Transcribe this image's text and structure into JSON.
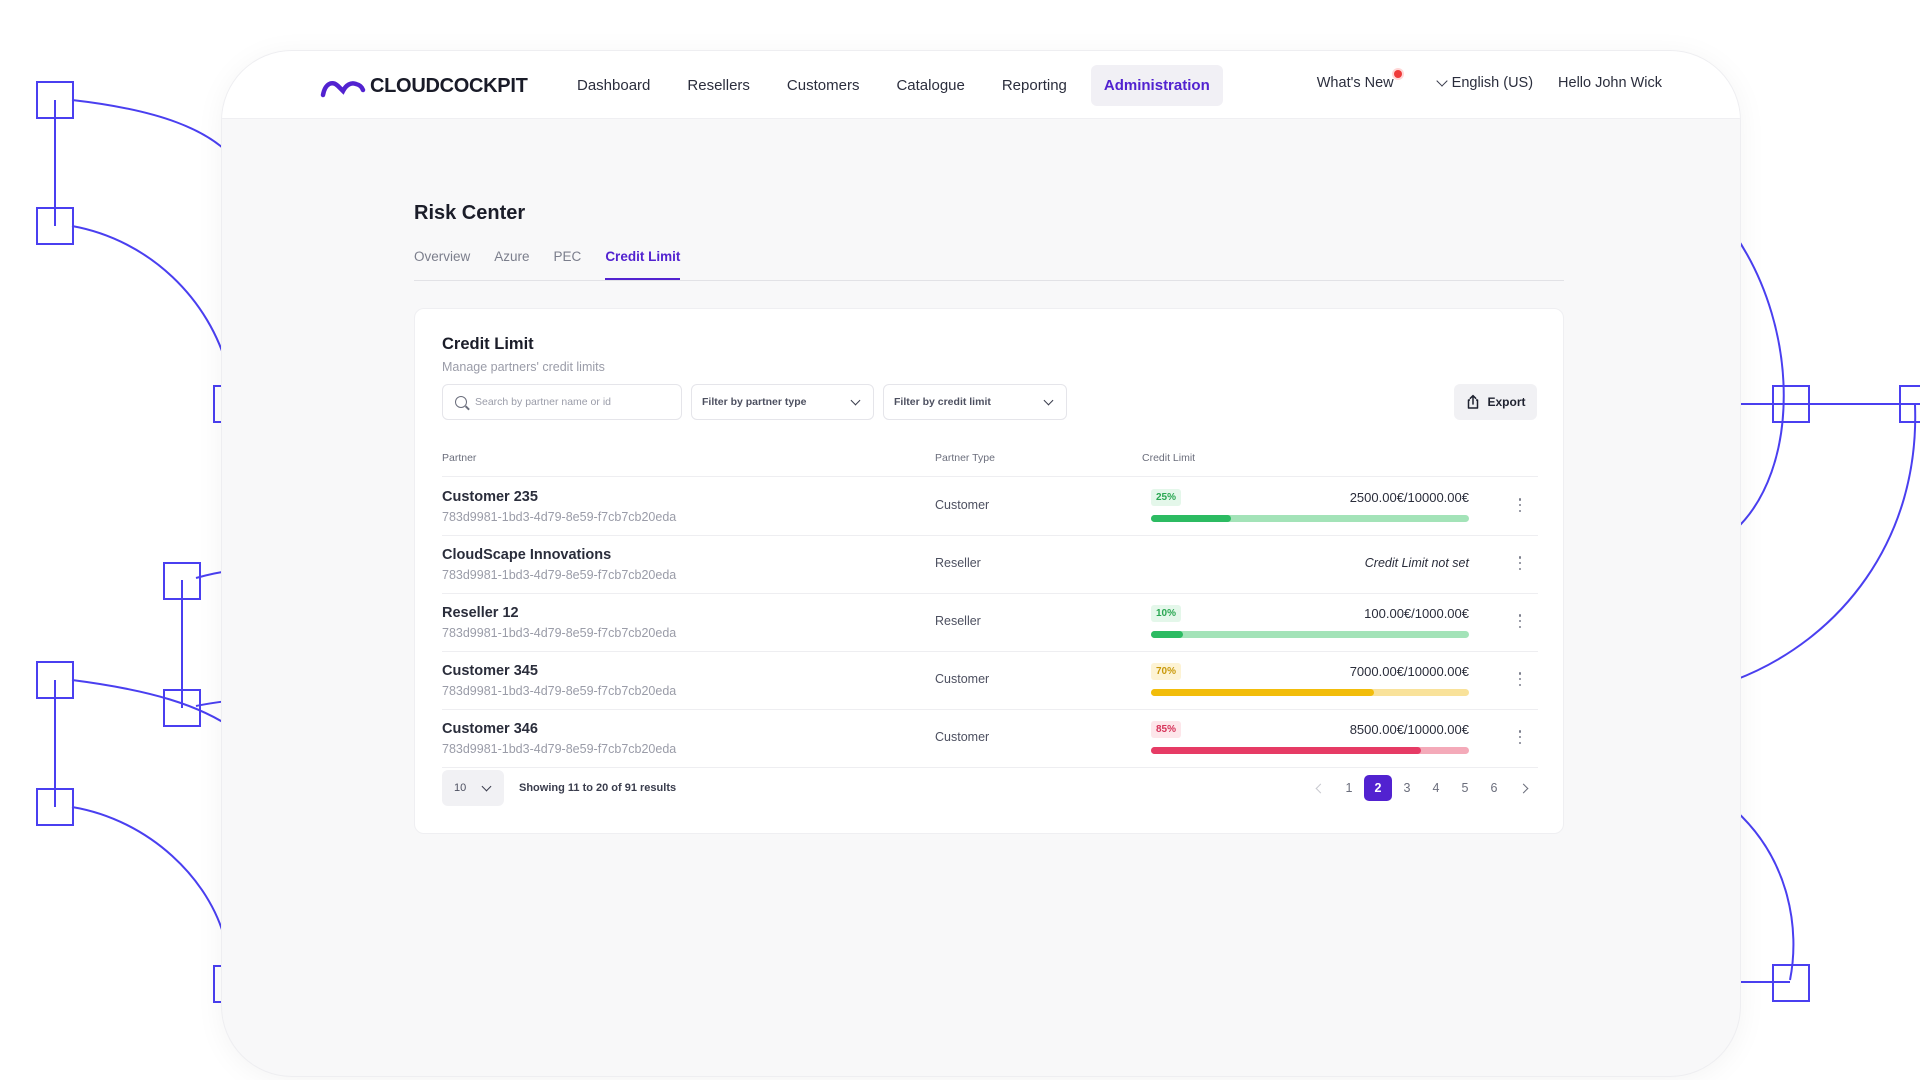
{
  "brand": {
    "name": "CLOUDCOCKPIT",
    "accent": "#5222d0"
  },
  "nav": {
    "items": [
      {
        "label": "Dashboard"
      },
      {
        "label": "Resellers"
      },
      {
        "label": "Customers"
      },
      {
        "label": "Catalogue"
      },
      {
        "label": "Reporting"
      },
      {
        "label": "Administration",
        "active": true
      }
    ],
    "whats_new": "What's New",
    "language": "English (US)",
    "greeting": "Hello John Wick"
  },
  "page": {
    "title": "Risk Center",
    "tabs": [
      {
        "label": "Overview"
      },
      {
        "label": "Azure"
      },
      {
        "label": "PEC"
      },
      {
        "label": "Credit Limit",
        "active": true
      }
    ]
  },
  "card": {
    "title": "Credit Limit",
    "subtitle": "Manage partners' credit limits",
    "search_placeholder": "Search by partner name or id",
    "filter_partner_type": "Filter by partner type",
    "filter_credit_limit": "Filter by credit limit",
    "export_label": "Export"
  },
  "table": {
    "columns": {
      "partner": "Partner",
      "partner_type": "Partner Type",
      "credit_limit": "Credit Limit"
    },
    "rows": [
      {
        "name": "Customer 235",
        "id": "783d9981-1bd3-4d79-8e59-f7cb7cb20eda",
        "type": "Customer",
        "percent_label": "25%",
        "percent": 25,
        "amount": "2500.00€/10000.00€",
        "status": "green"
      },
      {
        "name": "CloudScape Innovations",
        "id": "783d9981-1bd3-4d79-8e59-f7cb7cb20eda",
        "type": "Reseller",
        "not_set": "Credit Limit not set"
      },
      {
        "name": "Reseller 12",
        "id": "783d9981-1bd3-4d79-8e59-f7cb7cb20eda",
        "type": "Reseller",
        "percent_label": "10%",
        "percent": 10,
        "amount": "100.00€/1000.00€",
        "status": "green"
      },
      {
        "name": "Customer 345",
        "id": "783d9981-1bd3-4d79-8e59-f7cb7cb20eda",
        "type": "Customer",
        "percent_label": "70%",
        "percent": 70,
        "amount": "7000.00€/10000.00€",
        "status": "yellow"
      },
      {
        "name": "Customer 346",
        "id": "783d9981-1bd3-4d79-8e59-f7cb7cb20eda",
        "type": "Customer",
        "percent_label": "85%",
        "percent": 85,
        "amount": "8500.00€/10000.00€",
        "status": "red"
      }
    ]
  },
  "status_colors": {
    "green": {
      "badge_bg": "#e4f7ea",
      "badge_fg": "#2aa752",
      "track": "#a3e3b8",
      "fill": "#2cbb62"
    },
    "yellow": {
      "badge_bg": "#fdf3d4",
      "badge_fg": "#c9990a",
      "track": "#f9e29a",
      "fill": "#f2bd0b"
    },
    "red": {
      "badge_bg": "#fde6ea",
      "badge_fg": "#d6335a",
      "track": "#f4aab9",
      "fill": "#e63b65"
    }
  },
  "pagination": {
    "per_page": "10",
    "showing": "Showing 11 to 20 of 91 results",
    "pages": [
      "1",
      "2",
      "3",
      "4",
      "5",
      "6"
    ],
    "current": "2"
  }
}
